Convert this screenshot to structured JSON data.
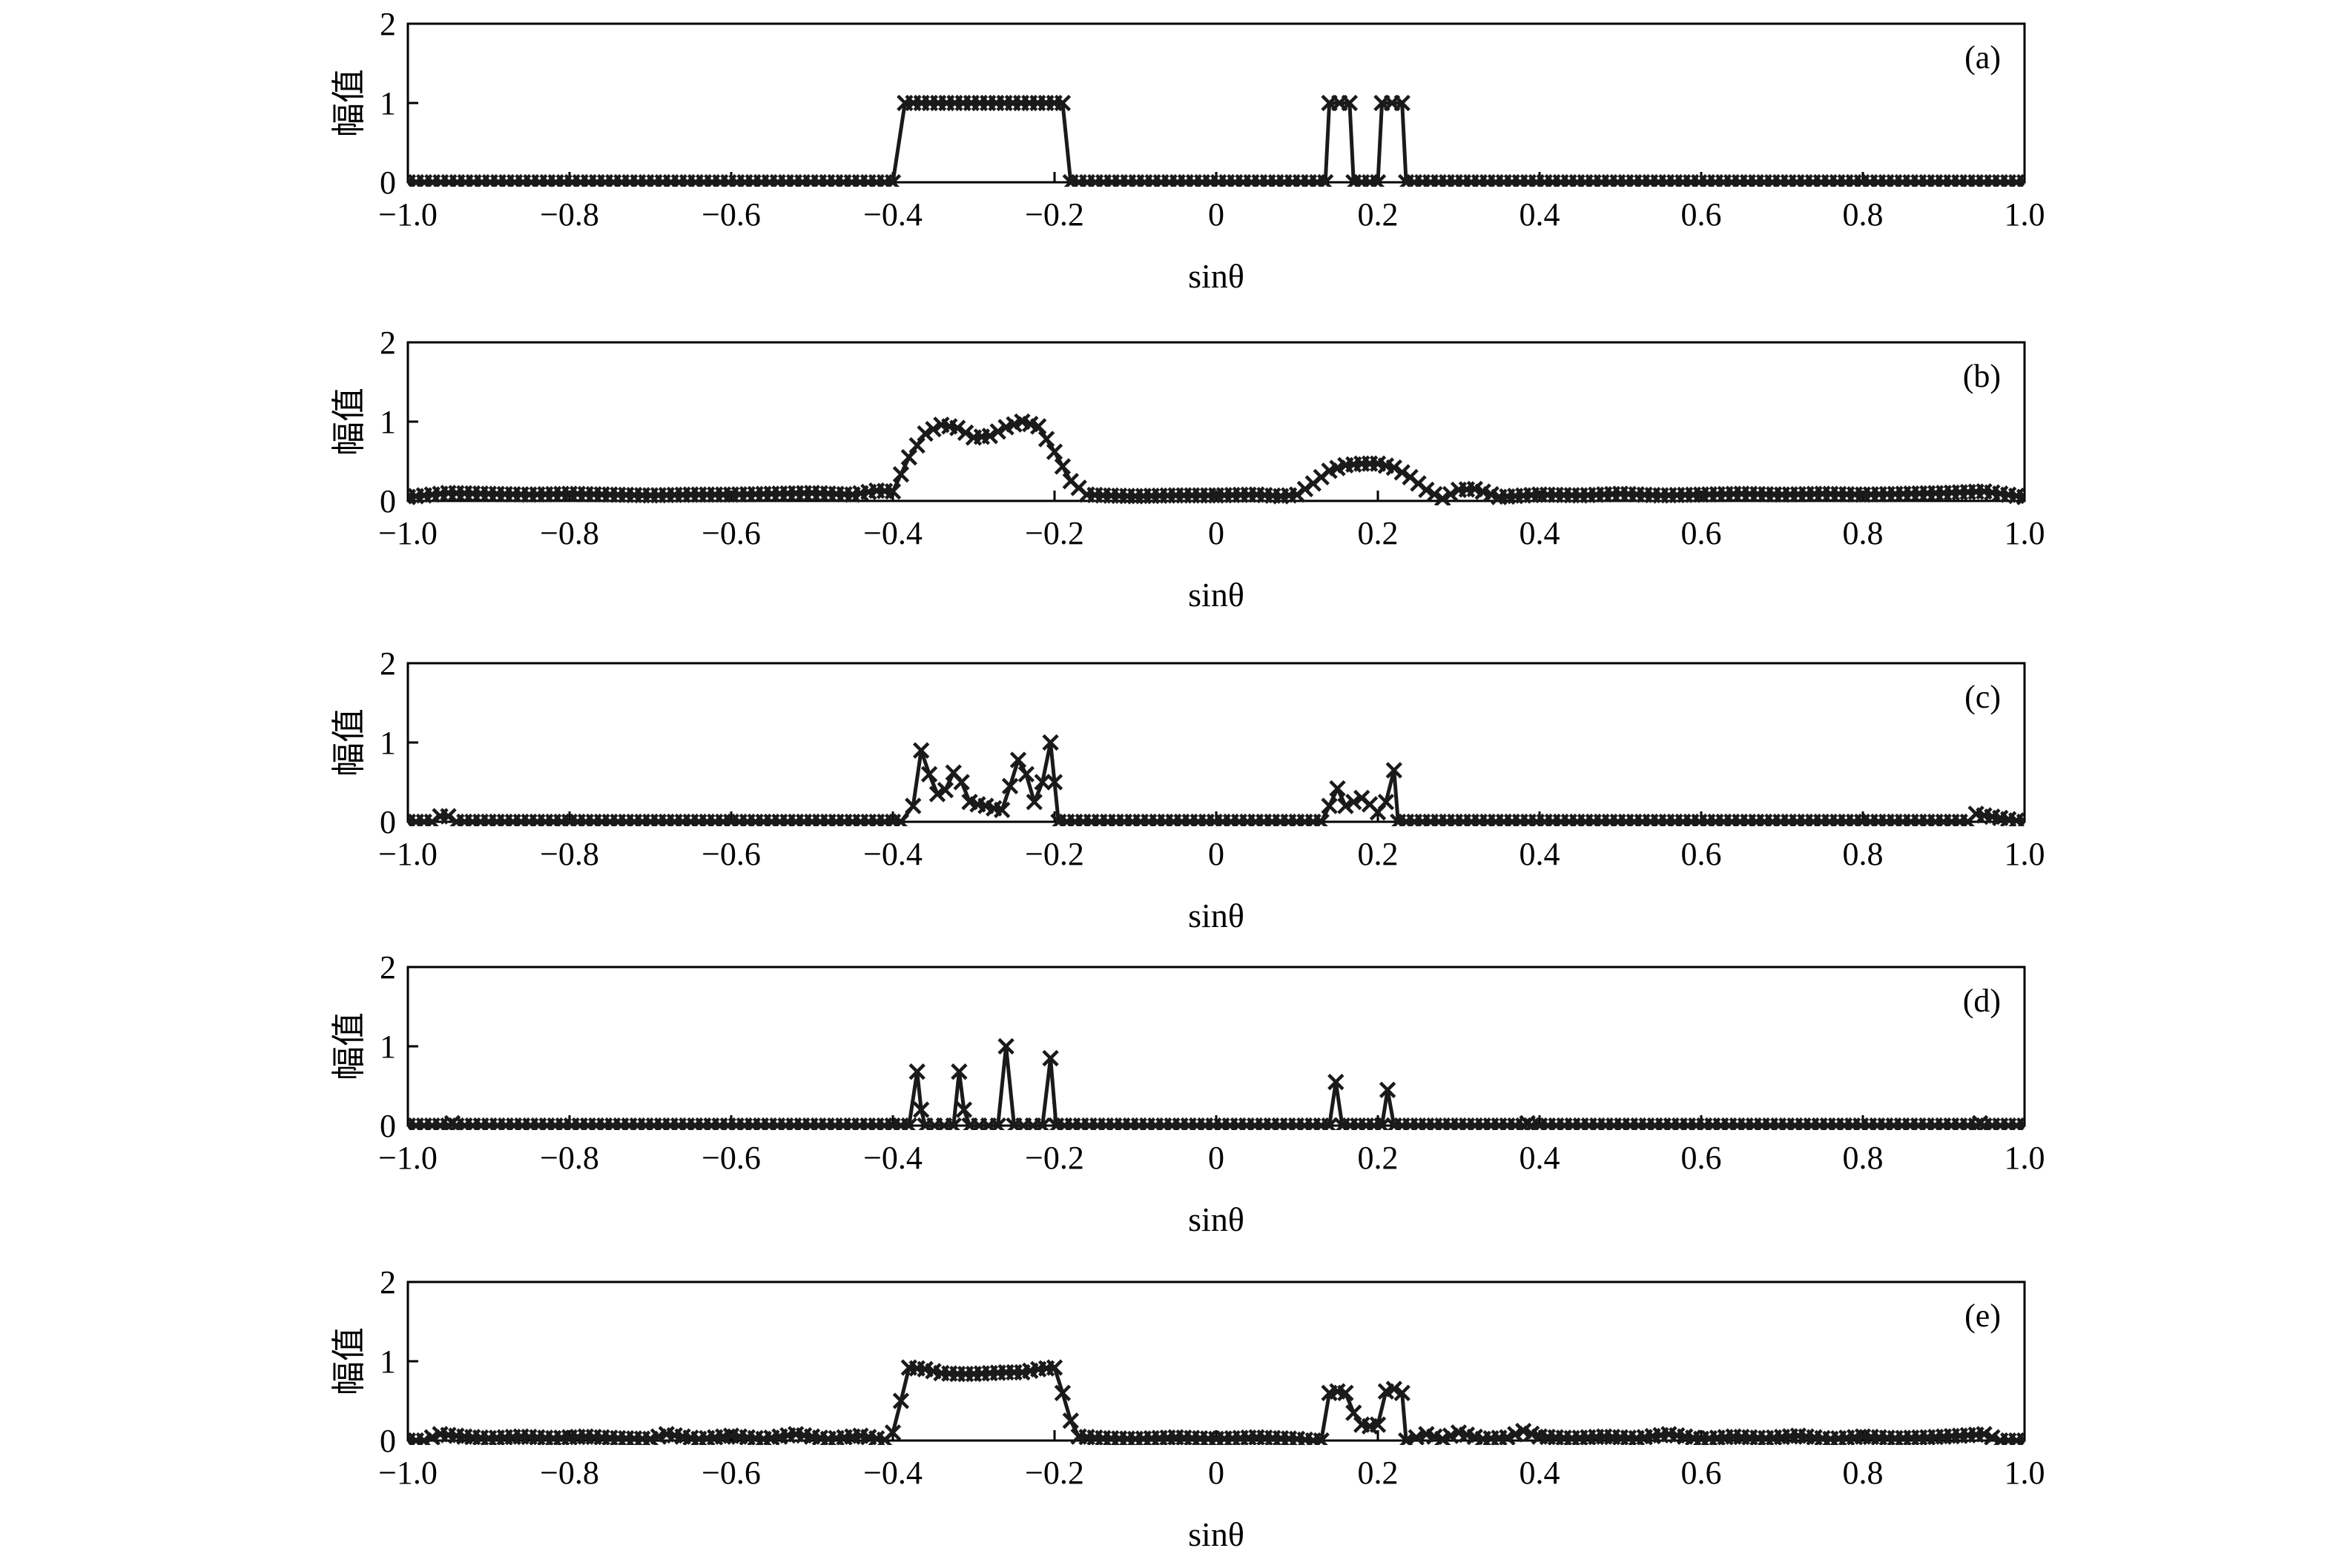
{
  "chart_data": [
    {
      "type": "line",
      "panel": "(a)",
      "xlabel": "sinθ",
      "ylabel": "幅值",
      "xlim": [
        -1.0,
        1.0
      ],
      "ylim": [
        0,
        2
      ],
      "xticks": [
        "−1.0",
        "−0.8",
        "−0.6",
        "−0.4",
        "−0.2",
        "0",
        "0.2",
        "0.4",
        "0.6",
        "0.8",
        "1.0"
      ],
      "yticks": [
        "0",
        "1",
        "2"
      ],
      "marker": "x",
      "x": [
        -1.0,
        -0.4,
        -0.385,
        -0.19,
        -0.18,
        0.135,
        0.14,
        0.165,
        0.17,
        0.2,
        0.205,
        0.23,
        0.235,
        1.0
      ],
      "y": [
        0,
        0,
        1,
        1,
        0,
        0,
        1,
        1,
        0,
        0,
        1,
        1,
        0,
        0
      ]
    },
    {
      "type": "line",
      "panel": "(b)",
      "xlabel": "sinθ",
      "ylabel": "幅值",
      "xlim": [
        -1.0,
        1.0
      ],
      "ylim": [
        0,
        2
      ],
      "xticks": [
        "−1.0",
        "−0.8",
        "−0.6",
        "−0.4",
        "−0.2",
        "0",
        "0.2",
        "0.4",
        "0.6",
        "0.8",
        "1.0"
      ],
      "yticks": [
        "0",
        "1",
        "2"
      ],
      "marker": "x",
      "x": [
        -1.0,
        -0.95,
        -0.9,
        -0.85,
        -0.8,
        -0.75,
        -0.7,
        -0.65,
        -0.6,
        -0.55,
        -0.5,
        -0.45,
        -0.42,
        -0.4,
        -0.38,
        -0.36,
        -0.34,
        -0.32,
        -0.3,
        -0.28,
        -0.26,
        -0.24,
        -0.22,
        -0.2,
        -0.18,
        -0.16,
        -0.14,
        -0.1,
        -0.05,
        0.0,
        0.05,
        0.08,
        0.1,
        0.12,
        0.14,
        0.16,
        0.18,
        0.2,
        0.22,
        0.24,
        0.26,
        0.28,
        0.3,
        0.32,
        0.35,
        0.4,
        0.45,
        0.5,
        0.55,
        0.6,
        0.65,
        0.7,
        0.75,
        0.8,
        0.85,
        0.9,
        0.95,
        1.0
      ],
      "y": [
        0.05,
        0.1,
        0.09,
        0.08,
        0.09,
        0.08,
        0.07,
        0.08,
        0.08,
        0.09,
        0.1,
        0.08,
        0.13,
        0.12,
        0.55,
        0.85,
        0.96,
        0.92,
        0.8,
        0.82,
        0.93,
        1.0,
        0.94,
        0.62,
        0.25,
        0.08,
        0.07,
        0.06,
        0.07,
        0.07,
        0.08,
        0.06,
        0.08,
        0.22,
        0.38,
        0.45,
        0.47,
        0.47,
        0.42,
        0.3,
        0.14,
        0.03,
        0.14,
        0.15,
        0.05,
        0.08,
        0.07,
        0.09,
        0.07,
        0.08,
        0.09,
        0.08,
        0.09,
        0.08,
        0.09,
        0.1,
        0.12,
        0.05
      ]
    },
    {
      "type": "line",
      "panel": "(c)",
      "xlabel": "sinθ",
      "ylabel": "幅值",
      "xlim": [
        -1.0,
        1.0
      ],
      "ylim": [
        0,
        2
      ],
      "xticks": [
        "−1.0",
        "−0.8",
        "−0.6",
        "−0.4",
        "−0.2",
        "0",
        "0.2",
        "0.4",
        "0.6",
        "0.8",
        "1.0"
      ],
      "yticks": [
        "0",
        "1",
        "2"
      ],
      "marker": "x",
      "x": [
        -1.0,
        -0.97,
        -0.96,
        -0.95,
        -0.94,
        -0.39,
        -0.375,
        -0.365,
        -0.355,
        -0.345,
        -0.335,
        -0.325,
        -0.315,
        -0.305,
        -0.295,
        -0.285,
        -0.275,
        -0.265,
        -0.255,
        -0.245,
        -0.235,
        -0.225,
        -0.215,
        -0.205,
        -0.2,
        -0.195,
        0.13,
        0.14,
        0.15,
        0.16,
        0.17,
        0.18,
        0.19,
        0.2,
        0.21,
        0.22,
        0.225,
        0.93,
        0.94,
        0.95,
        1.0
      ],
      "y": [
        0,
        0,
        0.07,
        0.07,
        0,
        0,
        0.2,
        0.9,
        0.6,
        0.35,
        0.4,
        0.62,
        0.5,
        0.25,
        0.22,
        0.2,
        0.17,
        0.15,
        0.45,
        0.78,
        0.6,
        0.25,
        0.5,
        1.0,
        0.5,
        0,
        0,
        0.2,
        0.42,
        0.2,
        0.25,
        0.3,
        0.22,
        0.12,
        0.25,
        0.65,
        0,
        0,
        0.1,
        0.08,
        0
      ]
    },
    {
      "type": "line",
      "panel": "(d)",
      "xlabel": "sinθ",
      "ylabel": "幅值",
      "xlim": [
        -1.0,
        1.0
      ],
      "ylim": [
        0,
        2
      ],
      "xticks": [
        "−1.0",
        "−0.8",
        "−0.6",
        "−0.4",
        "−0.2",
        "0",
        "0.2",
        "0.4",
        "0.6",
        "0.8",
        "1.0"
      ],
      "yticks": [
        "0",
        "1",
        "2"
      ],
      "marker": "x",
      "x": [
        -1.0,
        -0.95,
        -0.945,
        -0.94,
        -0.38,
        -0.37,
        -0.365,
        -0.36,
        -0.325,
        -0.318,
        -0.312,
        -0.305,
        -0.27,
        -0.26,
        -0.25,
        -0.215,
        -0.205,
        -0.198,
        0.14,
        0.148,
        0.156,
        0.205,
        0.212,
        0.22,
        0.38,
        0.385,
        0.39,
        0.94,
        0.945,
        0.95,
        1.0
      ],
      "y": [
        0,
        0,
        0.03,
        0,
        0,
        0.68,
        0.2,
        0,
        0,
        0.68,
        0.2,
        0,
        0,
        1.0,
        0,
        0,
        0.85,
        0,
        0,
        0.55,
        0,
        0,
        0.45,
        0,
        0,
        0.03,
        0,
        0,
        0.03,
        0,
        0
      ]
    },
    {
      "type": "line",
      "panel": "(e)",
      "xlabel": "sinθ",
      "ylabel": "幅值",
      "xlim": [
        -1.0,
        1.0
      ],
      "ylim": [
        0,
        2
      ],
      "xticks": [
        "−1.0",
        "−0.8",
        "−0.6",
        "−0.4",
        "−0.2",
        "0",
        "0.2",
        "0.4",
        "0.6",
        "0.8",
        "1.0"
      ],
      "yticks": [
        "0",
        "1",
        "2"
      ],
      "marker": "x",
      "x": [
        -1.0,
        -0.98,
        -0.96,
        -0.93,
        -0.9,
        -0.86,
        -0.82,
        -0.78,
        -0.74,
        -0.7,
        -0.68,
        -0.64,
        -0.6,
        -0.56,
        -0.52,
        -0.48,
        -0.44,
        -0.41,
        -0.4,
        -0.39,
        -0.38,
        -0.36,
        -0.34,
        -0.32,
        -0.3,
        -0.28,
        -0.26,
        -0.24,
        -0.22,
        -0.2,
        -0.19,
        -0.18,
        -0.17,
        -0.14,
        -0.1,
        -0.05,
        0.0,
        0.05,
        0.1,
        0.12,
        0.13,
        0.14,
        0.15,
        0.16,
        0.17,
        0.18,
        0.19,
        0.2,
        0.21,
        0.22,
        0.23,
        0.235,
        0.26,
        0.28,
        0.3,
        0.33,
        0.36,
        0.38,
        0.4,
        0.44,
        0.48,
        0.52,
        0.56,
        0.6,
        0.64,
        0.68,
        0.72,
        0.76,
        0.8,
        0.84,
        0.88,
        0.92,
        0.95,
        0.97,
        1.0
      ],
      "y": [
        0,
        0,
        0.08,
        0.05,
        0.03,
        0.05,
        0.03,
        0.05,
        0.03,
        0.02,
        0.08,
        0.02,
        0.06,
        0.02,
        0.08,
        0.02,
        0.06,
        0.01,
        0.1,
        0.5,
        0.92,
        0.9,
        0.85,
        0.84,
        0.84,
        0.85,
        0.86,
        0.86,
        0.9,
        0.92,
        0.6,
        0.25,
        0.05,
        0.03,
        0.02,
        0.04,
        0.02,
        0.04,
        0.02,
        0.0,
        0.0,
        0.6,
        0.62,
        0.6,
        0.35,
        0.2,
        0.18,
        0.2,
        0.62,
        0.65,
        0.6,
        0.0,
        0.08,
        0.02,
        0.1,
        0.02,
        0.04,
        0.12,
        0.05,
        0.03,
        0.05,
        0.03,
        0.08,
        0.02,
        0.05,
        0.03,
        0.06,
        0.02,
        0.05,
        0.03,
        0.04,
        0.06,
        0.08,
        0.0,
        0.0
      ]
    }
  ]
}
